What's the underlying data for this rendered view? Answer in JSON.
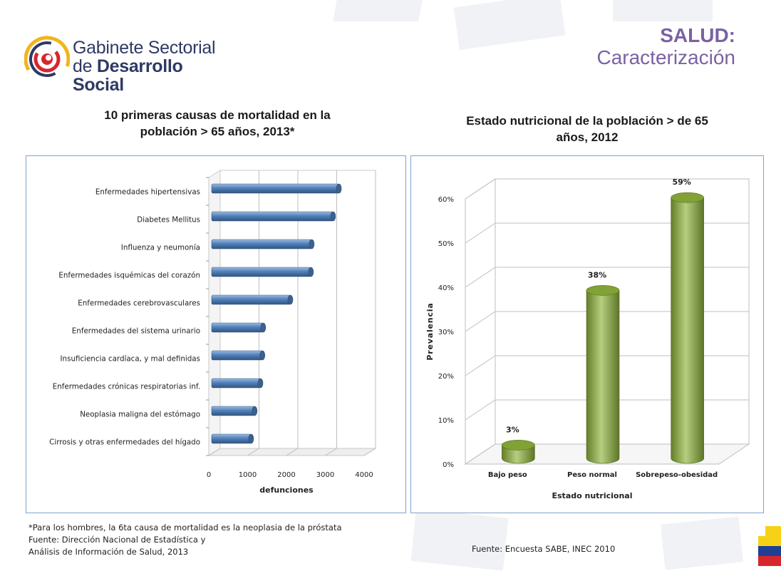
{
  "header": {
    "logo_line1": "Gabinete Sectorial",
    "logo_line2_prefix": "de ",
    "logo_line2_bold": "Desarrollo Social",
    "title_line1": "SALUD:",
    "title_line2": "Caracterización"
  },
  "left_title": {
    "line1": "10 primeras causas de mortalidad en la",
    "line2": "población > 65 años, 2013*"
  },
  "right_title": {
    "line1": "Estado nutricional de la población > de 65",
    "line2": "años, 2012"
  },
  "chart_data": [
    {
      "type": "bar",
      "orientation": "horizontal",
      "title": "10 primeras causas de mortalidad en la población > 65 años, 2013*",
      "xlabel": "defunciones",
      "ylabel": "",
      "xlim": [
        0,
        4000
      ],
      "x_ticks": [
        "0",
        "1000",
        "2000",
        "3000",
        "4000"
      ],
      "categories": [
        "Enfermedades hipertensivas",
        "Diabetes Mellitus",
        "Influenza y neumonía",
        "Enfermedades isquémicas del corazón",
        "Enfermedades cerebrovasculares",
        "Enfermedades del sistema urinario",
        "Insuficiencia cardíaca, y mal definidas",
        "Enfermedades crónicas respiratorias inf.",
        "Neoplasia maligna del estómago",
        "Cirrosis y otras enfermedades del hígado"
      ],
      "values": [
        3350,
        3200,
        2650,
        2630,
        2100,
        1400,
        1380,
        1330,
        1180,
        1090
      ],
      "color": "#4f81bd",
      "grid": true
    },
    {
      "type": "bar",
      "title": "Estado nutricional de la población > de 65 años, 2012",
      "xlabel": "Estado nutricional",
      "ylabel": "Prevalencia",
      "ylim": [
        0,
        60
      ],
      "y_ticks": [
        "0%",
        "10%",
        "20%",
        "30%",
        "40%",
        "50%",
        "60%"
      ],
      "categories": [
        "Bajo peso",
        "Peso normal",
        "Sobrepeso-obesidad"
      ],
      "values": [
        3,
        38,
        59
      ],
      "data_labels": [
        "3%",
        "38%",
        "59%"
      ],
      "color": "#8fb43a",
      "grid": true
    }
  ],
  "notes": {
    "left_line1": "*Para los hombres, la 6ta causa de mortalidad es la neoplasia de la próstata",
    "left_line2": "Fuente: Dirección Nacional de Estadística y",
    "left_line3": "Análisis de Información de Salud, 2013",
    "right_source": "Fuente: Encuesta SABE, INEC 2010"
  },
  "colors": {
    "title_purple": "#7a62a3",
    "panel_border": "#7fa3c8",
    "bar_blue": "#4f81bd",
    "bar_green": "#8fb43a"
  }
}
